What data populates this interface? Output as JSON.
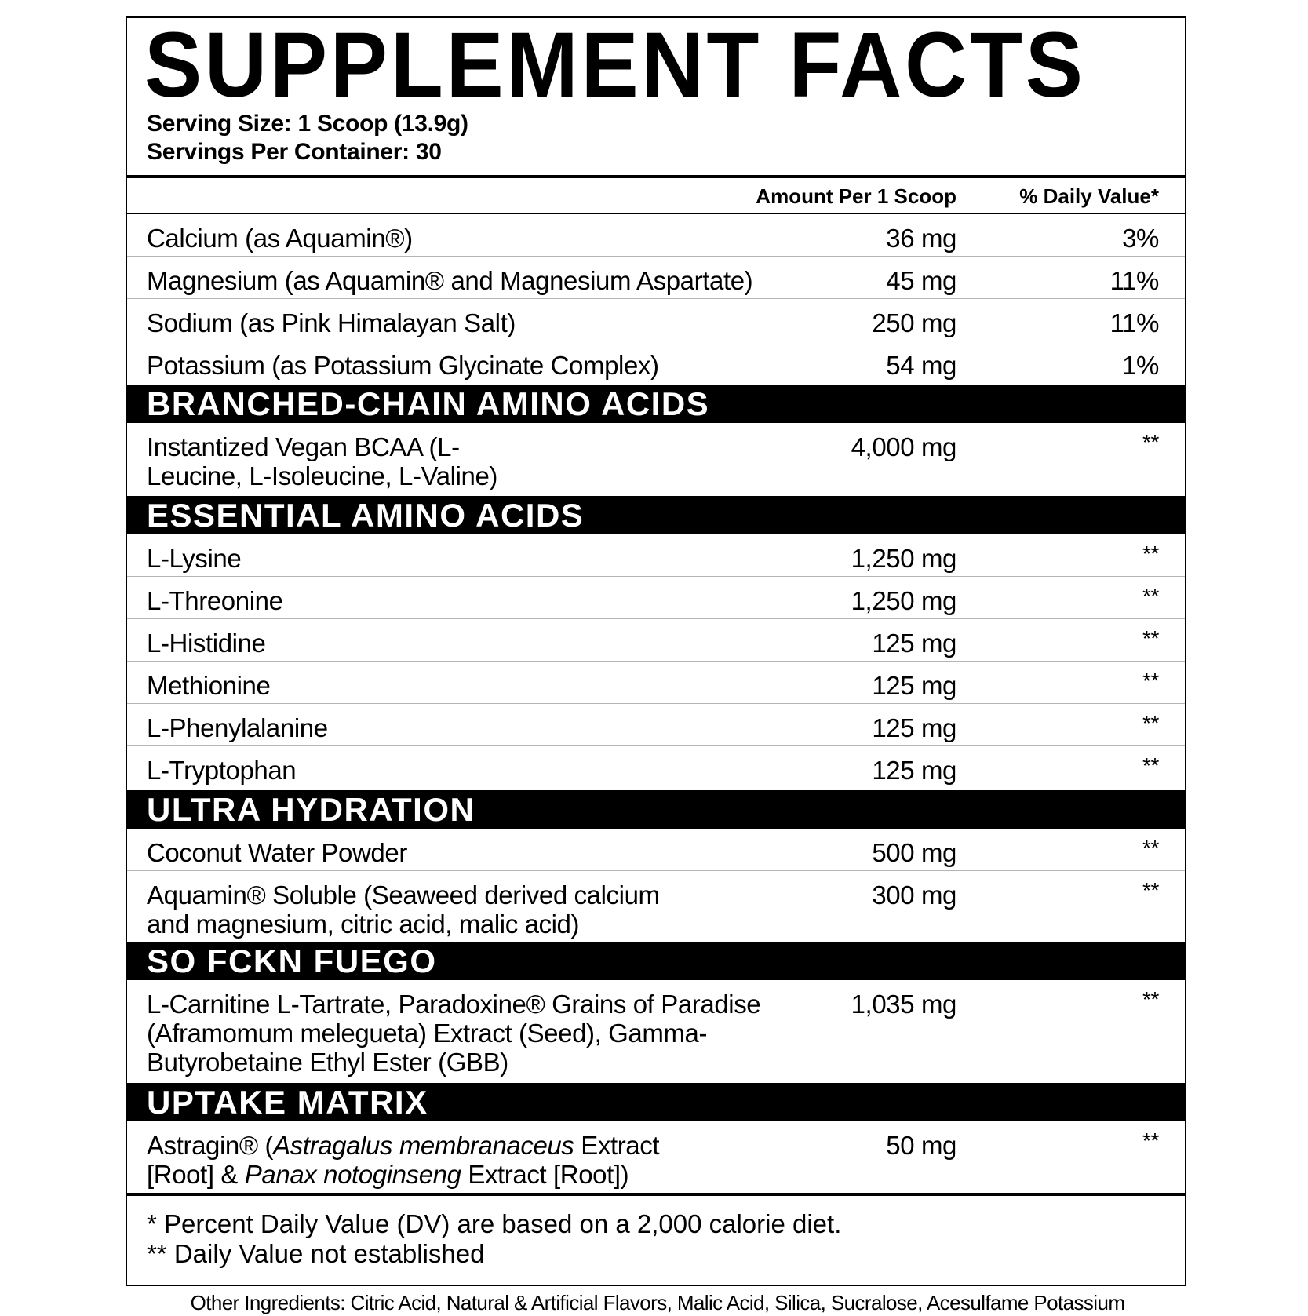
{
  "title": "SUPPLEMENT FACTS",
  "serving_size": "Serving Size: 1 Scoop (13.9g)",
  "servings_per_container": "Servings Per Container: 30",
  "header": {
    "amount": "Amount Per 1 Scoop",
    "dv": "% Daily Value*"
  },
  "blocks": [
    {
      "type": "row",
      "h": 54,
      "label": [
        {
          "text": "Calcium (as Aquamin®)"
        }
      ],
      "amount": "36 mg",
      "dv": "3%"
    },
    {
      "type": "row",
      "h": 53,
      "label": [
        {
          "text": "Magnesium (as Aquamin® and Magnesium Aspartate)"
        }
      ],
      "amount": "45 mg",
      "dv": "11%"
    },
    {
      "type": "row",
      "h": 53,
      "label": [
        {
          "text": "Sodium (as Pink Himalayan Salt)"
        }
      ],
      "amount": "250 mg",
      "dv": "11%"
    },
    {
      "type": "row",
      "h": 55,
      "label": [
        {
          "text": "Potassium (as Potassium Glycinate Complex)"
        }
      ],
      "amount": "54 mg",
      "dv": "1%",
      "nob": true
    },
    {
      "type": "section",
      "label": "BRANCHED-CHAIN AMINO ACIDS"
    },
    {
      "type": "row",
      "h": 93,
      "label": [
        {
          "text": "Instantized Vegan BCAA (L-Leucine, L-Isoleucine, L-Valine)"
        }
      ],
      "amount": "4,000 mg",
      "dv": "**",
      "nob": true,
      "w": 520
    },
    {
      "type": "section",
      "label": "ESSENTIAL AMINO ACIDS"
    },
    {
      "type": "row",
      "h": 53,
      "label": [
        {
          "text": "L-Lysine"
        }
      ],
      "amount": "1,250 mg",
      "dv": "**"
    },
    {
      "type": "row",
      "h": 53,
      "label": [
        {
          "text": "L-Threonine"
        }
      ],
      "amount": "1,250 mg",
      "dv": "**"
    },
    {
      "type": "row",
      "h": 53,
      "label": [
        {
          "text": "L-Histidine"
        }
      ],
      "amount": "125 mg",
      "dv": "**"
    },
    {
      "type": "row",
      "h": 53,
      "label": [
        {
          "text": "Methionine"
        }
      ],
      "amount": "125 mg",
      "dv": "**"
    },
    {
      "type": "row",
      "h": 53,
      "label": [
        {
          "text": "L-Phenylalanine"
        }
      ],
      "amount": "125 mg",
      "dv": "**"
    },
    {
      "type": "row",
      "h": 56,
      "label": [
        {
          "text": "L-Tryptophan"
        }
      ],
      "amount": "125 mg",
      "dv": "**",
      "nob": true
    },
    {
      "type": "section",
      "label": "ULTRA HYDRATION"
    },
    {
      "type": "row",
      "h": 54,
      "label": [
        {
          "text": "Coconut Water Powder"
        }
      ],
      "amount": "500 mg",
      "dv": "**"
    },
    {
      "type": "row",
      "h": 88,
      "label": [
        {
          "text": "Aquamin® Soluble (Seaweed derived calcium and magnesium, citric acid, malic acid)"
        }
      ],
      "amount": "300 mg",
      "dv": "**",
      "nob": true,
      "w": 700
    },
    {
      "type": "section",
      "label": "SO FCKN FUEGO"
    },
    {
      "type": "row",
      "h": 131,
      "label": [
        {
          "text": "L-Carnitine L-Tartrate, Paradoxine® Grains of Paradise (Aframomum melegueta) Extract (Seed), Gamma-Butyrobetaine Ethyl Ester (GBB)"
        }
      ],
      "amount": "1,035 mg",
      "dv": "**",
      "nob": true,
      "w": 820
    },
    {
      "type": "section",
      "label": "UPTAKE MATRIX"
    },
    {
      "type": "row",
      "h": 91,
      "label": [
        {
          "text": "Astragin® ("
        },
        {
          "text": "Astragalus membranaceus",
          "italic": true
        },
        {
          "text": " Extract [Root] & "
        },
        {
          "text": "Panax notoginseng",
          "italic": true
        },
        {
          "text": " Extract [Root])"
        }
      ],
      "amount": "50 mg",
      "dv": "**",
      "nob": true,
      "w": 690
    }
  ],
  "footnotes": [
    "* Percent Daily Value (DV) are based on a 2,000 calorie diet.",
    "** Daily Value not established"
  ],
  "other_ingredients": "Other Ingredients: Citric Acid, Natural & Artificial Flavors, Malic Acid, Silica, Sucralose, Acesulfame Potassium"
}
